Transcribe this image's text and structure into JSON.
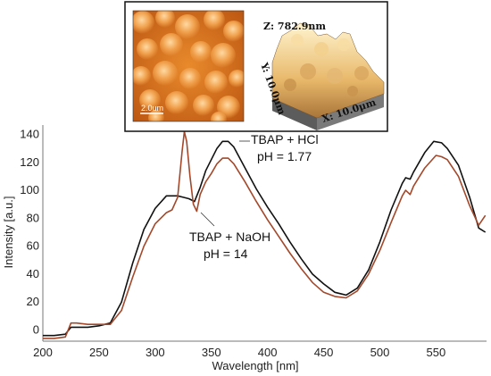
{
  "chart_data": {
    "type": "line",
    "title": "",
    "xlabel": "Wavelength [nm]",
    "ylabel": "Intensity [a.u.]",
    "xlim": [
      200,
      595
    ],
    "ylim": [
      -8,
      148
    ],
    "xticks": [
      200,
      250,
      300,
      350,
      400,
      450,
      500,
      550
    ],
    "yticks": [
      0,
      20,
      40,
      60,
      80,
      100,
      120,
      140
    ],
    "grid": false,
    "legend": "none",
    "series": [
      {
        "name": "TBAP + HCl",
        "color": "#111111",
        "x": [
          200,
          210,
          220,
          225,
          230,
          240,
          250,
          260,
          270,
          280,
          290,
          300,
          310,
          320,
          325,
          330,
          335,
          340,
          345,
          350,
          355,
          360,
          365,
          370,
          380,
          390,
          400,
          410,
          420,
          430,
          440,
          450,
          460,
          470,
          480,
          490,
          500,
          510,
          520,
          523,
          527,
          530,
          540,
          548,
          555,
          560,
          570,
          580,
          588,
          594
        ],
        "y": [
          -4,
          -4,
          -3,
          2,
          2,
          2,
          3,
          5,
          20,
          48,
          72,
          87,
          96,
          96,
          95,
          94,
          92,
          102,
          114,
          122,
          130,
          135,
          135,
          131,
          116,
          101,
          88,
          76,
          63,
          51,
          40,
          33,
          27,
          25,
          30,
          43,
          63,
          86,
          105,
          109,
          108,
          113,
          127,
          135,
          134,
          130,
          118,
          95,
          73,
          70
        ]
      },
      {
        "name": "TBAP + NaOH",
        "color": "#a3482a",
        "x": [
          200,
          210,
          220,
          225,
          230,
          240,
          250,
          260,
          270,
          280,
          290,
          300,
          310,
          315,
          320,
          324,
          326,
          328,
          331,
          334,
          337,
          340,
          345,
          350,
          355,
          360,
          365,
          370,
          380,
          390,
          400,
          410,
          420,
          430,
          440,
          450,
          460,
          470,
          480,
          490,
          500,
          510,
          520,
          523,
          527,
          530,
          540,
          550,
          555,
          560,
          570,
          580,
          588,
          594
        ],
        "y": [
          -6,
          -6,
          -5,
          5,
          5,
          4,
          4,
          4,
          14,
          38,
          60,
          76,
          84,
          86,
          95,
          128,
          142,
          135,
          110,
          90,
          85,
          97,
          106,
          112,
          119,
          123,
          123,
          119,
          106,
          92,
          79,
          67,
          55,
          44,
          34,
          27,
          24,
          23,
          28,
          40,
          57,
          77,
          96,
          100,
          97,
          103,
          116,
          125,
          124,
          122,
          110,
          89,
          75,
          82
        ]
      }
    ],
    "annotations": [
      {
        "text": "TBAP + HCl",
        "target": "TBAP + HCl"
      },
      {
        "text": "pH = 1.77",
        "target": "TBAP + HCl"
      },
      {
        "text": "TBAP + NaOH",
        "target": "TBAP + NaOH"
      },
      {
        "text": "pH = 14",
        "target": "TBAP + NaOH"
      }
    ]
  },
  "inset": {
    "scale_bar_label": "2.0um",
    "z_label": "Z: 782.9nm",
    "y_label": "Y: 10.0μm",
    "x_label": "X: 10.0μm"
  }
}
